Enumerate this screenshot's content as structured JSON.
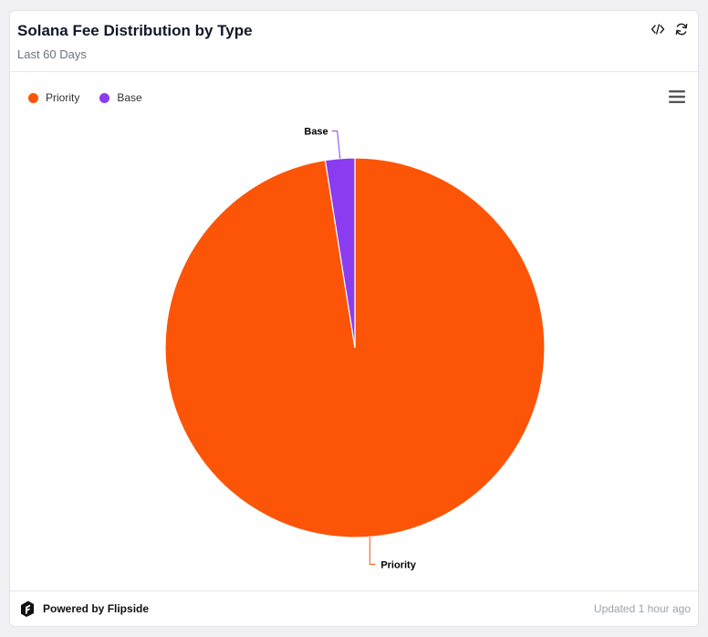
{
  "header": {
    "title": "Solana Fee Distribution by Type",
    "subtitle": "Last 60 Days"
  },
  "legend": {
    "items": [
      {
        "label": "Priority",
        "color": "#fc5508"
      },
      {
        "label": "Base",
        "color": "#8b3cf0"
      }
    ]
  },
  "chart_data": {
    "type": "pie",
    "labels": [
      "Priority",
      "Base"
    ],
    "values": [
      97.5,
      2.5
    ],
    "colors": [
      "#fc5508",
      "#8b3cf0"
    ],
    "title": "Solana Fee Distribution by Type",
    "subtitle": "Last 60 Days",
    "legend_position": "top-left"
  },
  "icons": {
    "embed": "code-icon",
    "refresh": "refresh-icon",
    "menu": "hamburger-menu-icon",
    "brand": "flipside-logo-icon"
  },
  "footer": {
    "powered_by": "Powered by Flipside",
    "updated": "Updated 1 hour ago"
  }
}
